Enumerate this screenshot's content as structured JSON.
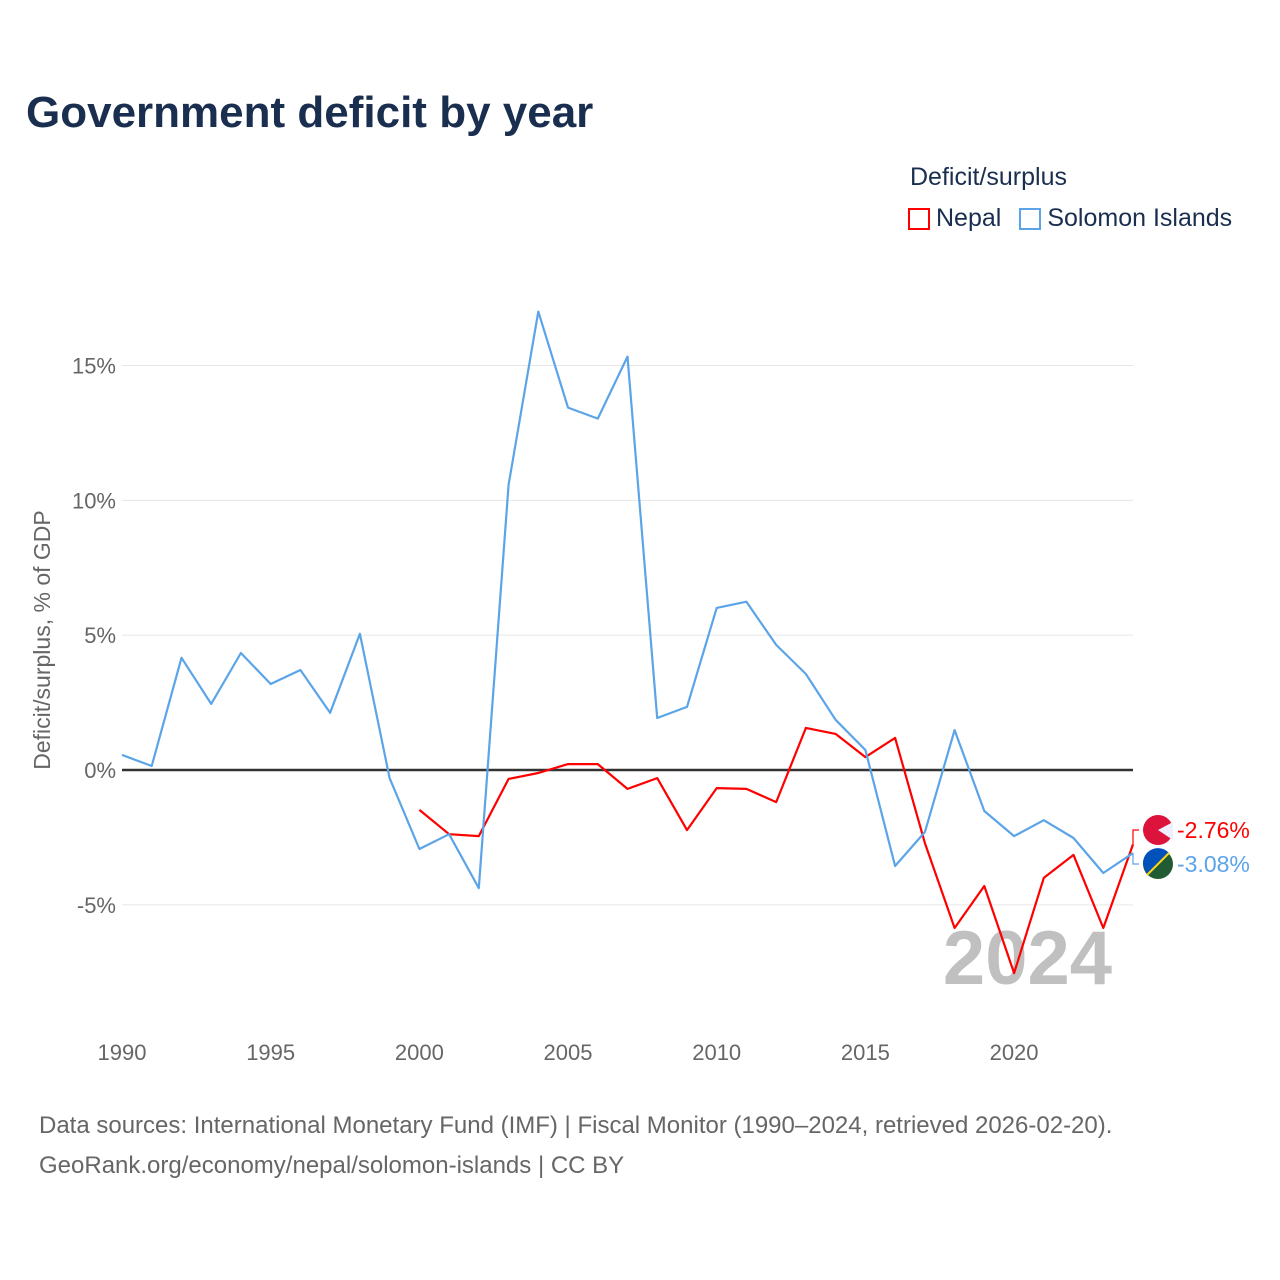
{
  "title": "Government deficit by year",
  "legend": {
    "title": "Deficit/surplus",
    "items": [
      {
        "name": "Nepal",
        "color": "#ff0000"
      },
      {
        "name": "Solomon Islands",
        "color": "#5ba4e8"
      }
    ]
  },
  "watermark_year": "2024",
  "source": {
    "line1": "Data sources: International Monetary Fund (IMF) | Fiscal Monitor (1990–2024, retrieved 2026-02-20).",
    "line2": "GeoRank.org/economy/nepal/solomon-islands | CC BY"
  },
  "chart_data": {
    "type": "line",
    "title": "Government deficit by year",
    "xlabel": "",
    "ylabel": "Deficit/surplus, % of GDP",
    "xlim": [
      1990,
      2024
    ],
    "ylim": [
      -8.9,
      17.8
    ],
    "x_ticks": [
      1990,
      1995,
      2000,
      2005,
      2010,
      2015,
      2020
    ],
    "x_tick_labels": [
      "1990",
      "1995",
      "2000",
      "2005",
      "2010",
      "2015",
      "2020"
    ],
    "y_ticks": [
      -5,
      0,
      5,
      10,
      15
    ],
    "y_tick_labels": [
      "-5%",
      "0%",
      "5%",
      "10%",
      "15%"
    ],
    "grid": true,
    "legend_position": "top-right",
    "series": [
      {
        "name": "Nepal",
        "color": "#ff0000",
        "end_label": "-2.76%",
        "x": [
          2000,
          2001,
          2002,
          2003,
          2004,
          2005,
          2006,
          2007,
          2008,
          2009,
          2010,
          2011,
          2012,
          2013,
          2014,
          2015,
          2016,
          2017,
          2018,
          2019,
          2020,
          2021,
          2022,
          2023,
          2024
        ],
        "values": [
          -1.48,
          -2.38,
          -2.45,
          -0.33,
          -0.11,
          0.22,
          0.22,
          -0.7,
          -0.3,
          -2.23,
          -0.67,
          -0.7,
          -1.19,
          1.56,
          1.34,
          0.48,
          1.19,
          -2.71,
          -5.86,
          -4.3,
          -7.53,
          -4.0,
          -3.15,
          -5.86,
          -2.76
        ]
      },
      {
        "name": "Solomon Islands",
        "color": "#5ba4e8",
        "end_label": "-3.08%",
        "x": [
          1990,
          1991,
          1992,
          1993,
          1994,
          1995,
          1996,
          1997,
          1998,
          1999,
          2000,
          2001,
          2002,
          2003,
          2004,
          2005,
          2006,
          2007,
          2008,
          2009,
          2010,
          2011,
          2012,
          2013,
          2014,
          2015,
          2016,
          2017,
          2018,
          2019,
          2020,
          2021,
          2022,
          2023,
          2024
        ],
        "values": [
          0.56,
          0.15,
          4.16,
          2.45,
          4.34,
          3.19,
          3.71,
          2.12,
          5.05,
          -0.3,
          -2.93,
          -2.38,
          -4.38,
          10.58,
          17.0,
          13.44,
          13.03,
          15.33,
          1.93,
          2.34,
          6.01,
          6.24,
          4.64,
          3.56,
          1.86,
          0.74,
          -3.56,
          -2.3,
          1.48,
          -1.52,
          -2.45,
          -1.86,
          -2.52,
          -3.82,
          -3.08
        ]
      }
    ]
  }
}
